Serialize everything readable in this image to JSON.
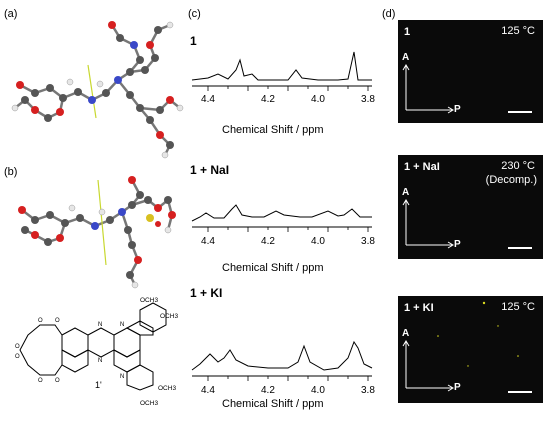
{
  "panel_labels": {
    "a": "(a)",
    "b": "(b)",
    "c": "(c)",
    "d": "(d)"
  },
  "compound_label_1prime": "1'",
  "structure_substituents": [
    "OCH3",
    "OCH3",
    "OCH3",
    "OCH3"
  ],
  "nmr": {
    "xlabel": "Chemical Shift / ppm",
    "tick_labels": [
      "4.4",
      "4.2",
      "4.0",
      "3.8"
    ],
    "spectra": [
      {
        "label": "1"
      },
      {
        "label": "1 + NaI"
      },
      {
        "label": "1 + KI"
      }
    ]
  },
  "pom": {
    "axis_a": "A",
    "axis_p": "P",
    "images": [
      {
        "label": "1",
        "temp": "125 °C"
      },
      {
        "label": "1 + NaI",
        "temp": "230 °C",
        "note": "(Decomp.)"
      },
      {
        "label": "1 + KI",
        "temp": "125 °C"
      }
    ]
  },
  "colors": {
    "carbon": "#555555",
    "oxygen": "#d62020",
    "nitrogen": "#3a48c8",
    "hydrogen": "#e6e6e6",
    "sulfur": "#d8c020",
    "axis_line": "#c8d830",
    "pom_bg": "#0a0a0a"
  }
}
